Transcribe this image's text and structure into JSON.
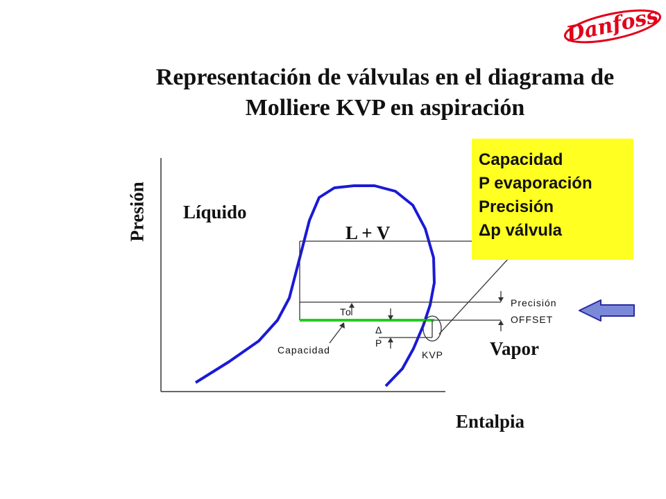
{
  "title": {
    "line1": "Representación de válvulas en el diagrama de",
    "line2": "Molliere  KVP en aspiración"
  },
  "logo_text": "Danfoss",
  "brand_color": "#e2001a",
  "axes": {
    "y_label": "Presión",
    "x_label": "Entalpia"
  },
  "regions": {
    "liquid": "Líquido",
    "mix": "L + V",
    "vapor": "Vapor"
  },
  "annotations": {
    "to": "To",
    "capacidad": "Capacidad",
    "delta": "Δ",
    "p": "P",
    "kvp": "KVP",
    "precision": "Precisión",
    "offset": "OFFSET"
  },
  "infobox": {
    "items": [
      "Capacidad",
      "P evaporación",
      "Precisión",
      "Δp válvula"
    ],
    "background": "#ffff22"
  },
  "colors": {
    "dome": "#1a1ad6",
    "evaporation_line": "#22cc22",
    "arrow_fill": "#7b8ad8"
  }
}
